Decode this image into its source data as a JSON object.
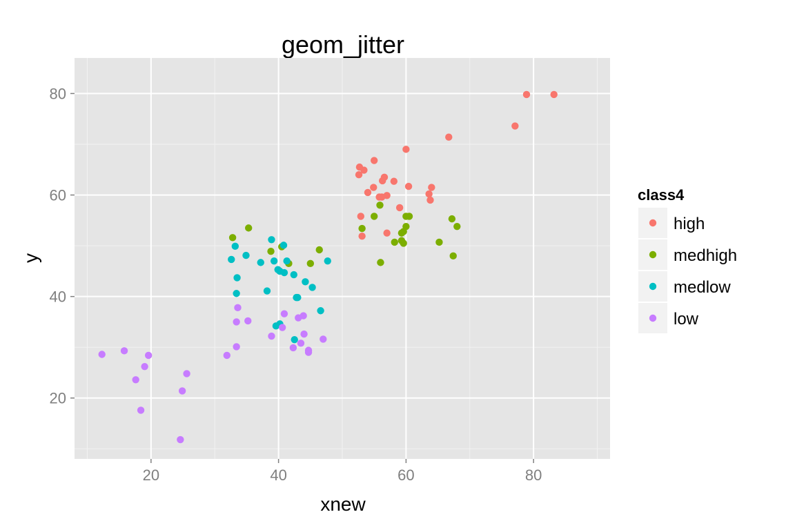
{
  "chart_data": {
    "type": "scatter",
    "title": "geom_jitter",
    "xlabel": "xnew",
    "ylabel": "y",
    "xlim": [
      8,
      92
    ],
    "ylim": [
      8,
      87
    ],
    "x_ticks": [
      20,
      40,
      60,
      80
    ],
    "y_ticks": [
      20,
      40,
      60,
      80
    ],
    "x_tick_labels": [
      "20",
      "40",
      "60",
      "80"
    ],
    "y_tick_labels": [
      "20",
      "40",
      "60",
      "80"
    ],
    "grid": true,
    "panel_background": "#e5e5e5",
    "legend": {
      "title": "class4",
      "position": "right",
      "entries": [
        {
          "label": "high",
          "color": "#f8766d"
        },
        {
          "label": "medhigh",
          "color": "#7cae00"
        },
        {
          "label": "medlow",
          "color": "#00bfc4"
        },
        {
          "label": "low",
          "color": "#c77cff"
        }
      ]
    },
    "series": [
      {
        "name": "high",
        "color": "#f8766d",
        "x": [
          83.2,
          78.9,
          77.1,
          66.7,
          60.0,
          55.0,
          53.4,
          52.7,
          52.6,
          56.6,
          56.3,
          58.1,
          54.9,
          56.2,
          55.8,
          54.0,
          60.4,
          64.0,
          63.6,
          63.8,
          57.0,
          59.0,
          52.9,
          57.0,
          53.1
        ],
        "y": [
          79.8,
          79.8,
          73.6,
          71.4,
          69.0,
          66.8,
          64.9,
          65.5,
          64.0,
          63.5,
          62.8,
          62.7,
          61.5,
          59.6,
          59.6,
          60.5,
          61.7,
          61.5,
          60.2,
          59.0,
          59.9,
          57.5,
          55.8,
          52.5,
          51.9
        ]
      },
      {
        "name": "medhigh",
        "color": "#7cae00",
        "x": [
          35.3,
          32.8,
          40.5,
          38.8,
          46.4,
          41.6,
          45.0,
          55.9,
          55.0,
          53.1,
          60.0,
          60.5,
          60.0,
          59.3,
          59.6,
          58.2,
          59.6,
          59.3,
          56.0,
          65.2,
          67.2,
          68.0,
          67.4
        ],
        "y": [
          53.5,
          51.6,
          49.8,
          48.9,
          49.2,
          46.5,
          46.5,
          58.0,
          55.8,
          53.4,
          55.8,
          55.8,
          53.8,
          52.5,
          52.8,
          50.7,
          50.5,
          51.0,
          46.7,
          50.7,
          55.3,
          53.8,
          48.0
        ]
      },
      {
        "name": "medlow",
        "color": "#00bfc4",
        "x": [
          38.9,
          40.8,
          33.2,
          32.6,
          34.9,
          37.2,
          39.3,
          41.3,
          47.7,
          40.2,
          39.9,
          40.9,
          42.4,
          33.5,
          44.2,
          45.3,
          38.2,
          33.4,
          42.8,
          43.0,
          46.6,
          40.2,
          39.6,
          42.5
        ],
        "y": [
          51.2,
          50.1,
          49.9,
          47.3,
          48.1,
          46.7,
          47.0,
          47.0,
          47.0,
          45.0,
          45.3,
          44.7,
          44.3,
          43.7,
          42.9,
          41.8,
          41.1,
          40.6,
          39.8,
          39.8,
          37.2,
          34.6,
          34.2,
          31.5
        ]
      },
      {
        "name": "low",
        "color": "#c77cff",
        "x": [
          33.6,
          40.9,
          43.9,
          43.1,
          33.4,
          35.2,
          40.6,
          44.0,
          38.9,
          47.0,
          43.5,
          33.4,
          42.3,
          44.7,
          44.7,
          31.9,
          12.3,
          15.8,
          19.6,
          19.0,
          25.6,
          17.6,
          24.9,
          18.4,
          24.6
        ],
        "y": [
          37.8,
          36.6,
          36.2,
          35.8,
          35.0,
          35.2,
          33.9,
          32.6,
          32.2,
          31.6,
          30.8,
          30.1,
          29.9,
          29.4,
          29.0,
          28.4,
          28.6,
          29.3,
          28.4,
          26.2,
          24.8,
          23.6,
          21.4,
          17.6,
          11.8
        ]
      }
    ]
  }
}
